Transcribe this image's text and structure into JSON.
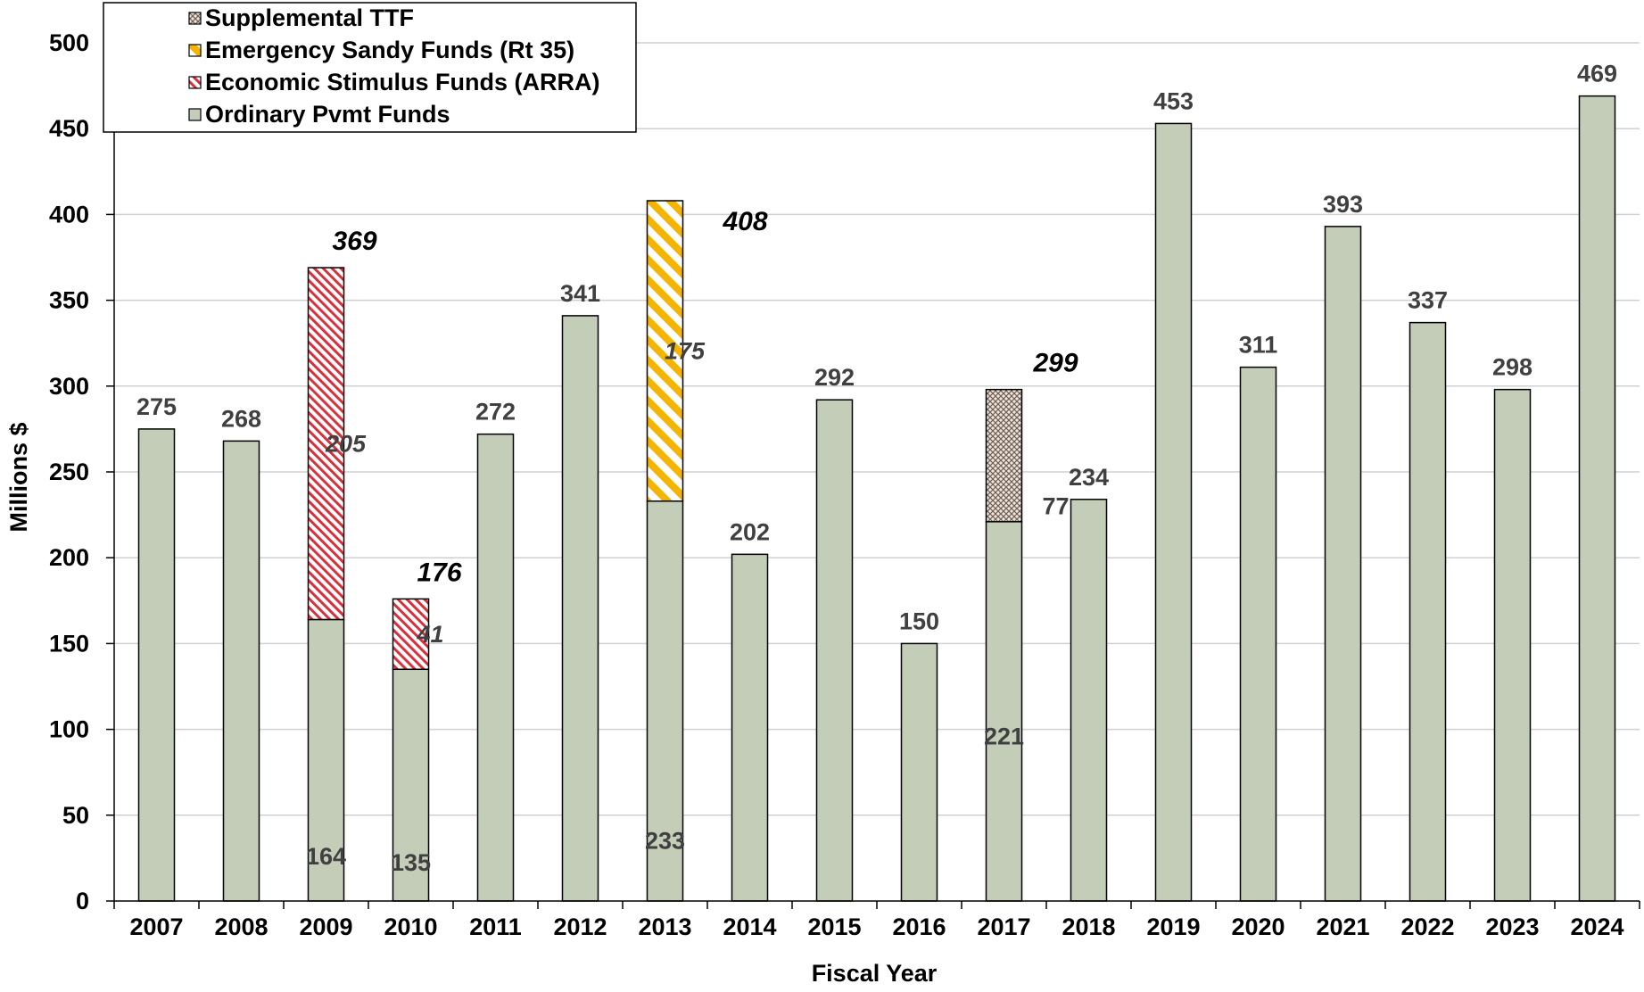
{
  "chart_data": {
    "type": "bar",
    "stacked": true,
    "xlabel": "Fiscal Year",
    "ylabel": "Millions $",
    "ylim": [
      0,
      500
    ],
    "yticks": [
      0,
      50,
      100,
      150,
      200,
      250,
      300,
      350,
      400,
      450,
      500
    ],
    "grid": true,
    "legend_position": "top-left",
    "categories": [
      "2007",
      "2008",
      "2009",
      "2010",
      "2011",
      "2012",
      "2013",
      "2014",
      "2015",
      "2016",
      "2017",
      "2018",
      "2019",
      "2020",
      "2021",
      "2022",
      "2023",
      "2024"
    ],
    "series": [
      {
        "name": "Ordinary Pvmt Funds",
        "color": "#c4cdb8",
        "pattern": "solid",
        "values": [
          275,
          268,
          164,
          135,
          272,
          341,
          233,
          202,
          292,
          150,
          221,
          234,
          453,
          311,
          393,
          337,
          298,
          469
        ]
      },
      {
        "name": "Economic Stimulus Funds (ARRA)",
        "color": "#e0404a",
        "pattern": "red-hatch",
        "values": [
          0,
          0,
          205,
          41,
          0,
          0,
          0,
          0,
          0,
          0,
          0,
          0,
          0,
          0,
          0,
          0,
          0,
          0
        ]
      },
      {
        "name": "Emergency Sandy Funds (Rt 35)",
        "color": "#f5b400",
        "pattern": "yellow-hatch",
        "values": [
          0,
          0,
          0,
          0,
          0,
          0,
          175,
          0,
          0,
          0,
          0,
          0,
          0,
          0,
          0,
          0,
          0,
          0
        ]
      },
      {
        "name": "Supplemental TTF",
        "color": "#6e5e55",
        "pattern": "crosshatch",
        "values": [
          0,
          0,
          0,
          0,
          0,
          0,
          0,
          0,
          0,
          0,
          77,
          0,
          0,
          0,
          0,
          0,
          0,
          0
        ]
      }
    ],
    "totals": {
      "2009": "369",
      "2010": "176",
      "2013": "408",
      "2017": "299"
    },
    "legend_order": [
      "Supplemental TTF",
      "Emergency Sandy Funds (Rt 35)",
      "Economic Stimulus Funds (ARRA)",
      "Ordinary Pvmt Funds"
    ]
  }
}
